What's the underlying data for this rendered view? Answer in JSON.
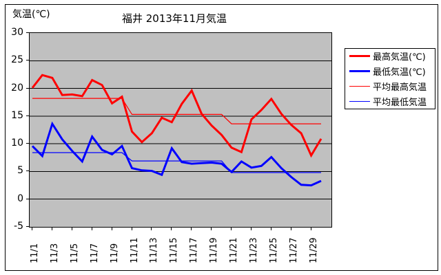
{
  "header": {
    "title": "福井 2013年11月気温",
    "y_axis_unit": "気温(℃)"
  },
  "colors": {
    "max_temp": "#FF0000",
    "min_temp": "#0000FF",
    "avg_max_temp": "#FF0000",
    "avg_min_temp": "#0000FF",
    "plot_background": "#C0C0C0",
    "gridline": "#000000",
    "chart_background": "#FFFFFF"
  },
  "legend": {
    "position": "right",
    "items": [
      {
        "label": "最高気温(℃)",
        "style": "thick",
        "color": "#FF0000"
      },
      {
        "label": "最低気温(℃)",
        "style": "thick",
        "color": "#0000FF"
      },
      {
        "label": "平均最高気温",
        "style": "thin",
        "color": "#FF0000"
      },
      {
        "label": "平均最低気温",
        "style": "thin",
        "color": "#0000FF"
      }
    ]
  },
  "chart_data": {
    "type": "line",
    "title": "福井 2013年11月気温",
    "xlabel": "",
    "ylabel": "気温(℃)",
    "ylim": [
      -5,
      30
    ],
    "y_ticks": [
      30,
      25,
      20,
      15,
      10,
      5,
      0,
      -5
    ],
    "grid": "horizontal",
    "legend_position": "right",
    "x_days": [
      1,
      2,
      3,
      4,
      5,
      6,
      7,
      8,
      9,
      10,
      11,
      12,
      13,
      14,
      15,
      16,
      17,
      18,
      19,
      20,
      21,
      22,
      23,
      24,
      25,
      26,
      27,
      28,
      29,
      30
    ],
    "x_tick_labels": [
      "11/1",
      "11/3",
      "11/5",
      "11/7",
      "11/9",
      "11/11",
      "11/13",
      "11/15",
      "11/17",
      "11/19",
      "11/21",
      "11/23",
      "11/25",
      "11/27",
      "11/29"
    ],
    "series": [
      {
        "name": "最高気温(℃)",
        "color": "#FF0000",
        "width": "thick",
        "values": [
          20.1,
          22.4,
          21.9,
          18.8,
          18.9,
          18.6,
          21.5,
          20.6,
          17.3,
          18.5,
          12.2,
          10.3,
          11.9,
          14.7,
          13.9,
          17.2,
          19.6,
          15.4,
          13.3,
          11.6,
          9.3,
          8.5,
          14.4,
          16.1,
          18.1,
          15.4,
          13.4,
          11.9,
          7.9,
          10.9
        ]
      },
      {
        "name": "最低気温(℃)",
        "color": "#0000FF",
        "width": "thick",
        "values": [
          9.6,
          7.8,
          13.6,
          10.8,
          8.7,
          6.8,
          11.3,
          8.9,
          8.1,
          9.6,
          5.6,
          5.2,
          5.1,
          4.4,
          9.2,
          6.7,
          6.4,
          6.5,
          6.6,
          6.4,
          4.9,
          6.8,
          5.7,
          6.0,
          7.6,
          5.6,
          4.0,
          2.6,
          2.5,
          3.3
        ]
      },
      {
        "name": "平均最高気温",
        "color": "#FF0000",
        "width": "thin",
        "values": [
          18.2,
          18.2,
          18.2,
          18.2,
          18.2,
          18.2,
          18.2,
          18.2,
          18.2,
          18.2,
          15.3,
          15.3,
          15.3,
          15.3,
          15.3,
          15.3,
          15.3,
          15.3,
          15.3,
          15.3,
          13.6,
          13.6,
          13.6,
          13.6,
          13.6,
          13.6,
          13.6,
          13.6,
          13.6,
          13.6
        ]
      },
      {
        "name": "平均最低気温",
        "color": "#0000FF",
        "width": "thin",
        "values": [
          8.4,
          8.4,
          8.4,
          8.4,
          8.4,
          8.4,
          8.4,
          8.4,
          8.4,
          8.4,
          6.9,
          6.9,
          6.9,
          6.9,
          6.9,
          6.9,
          6.9,
          6.9,
          6.9,
          6.9,
          4.8,
          4.8,
          4.8,
          4.8,
          4.8,
          4.8,
          4.8,
          4.8,
          4.8,
          4.8
        ]
      }
    ]
  }
}
